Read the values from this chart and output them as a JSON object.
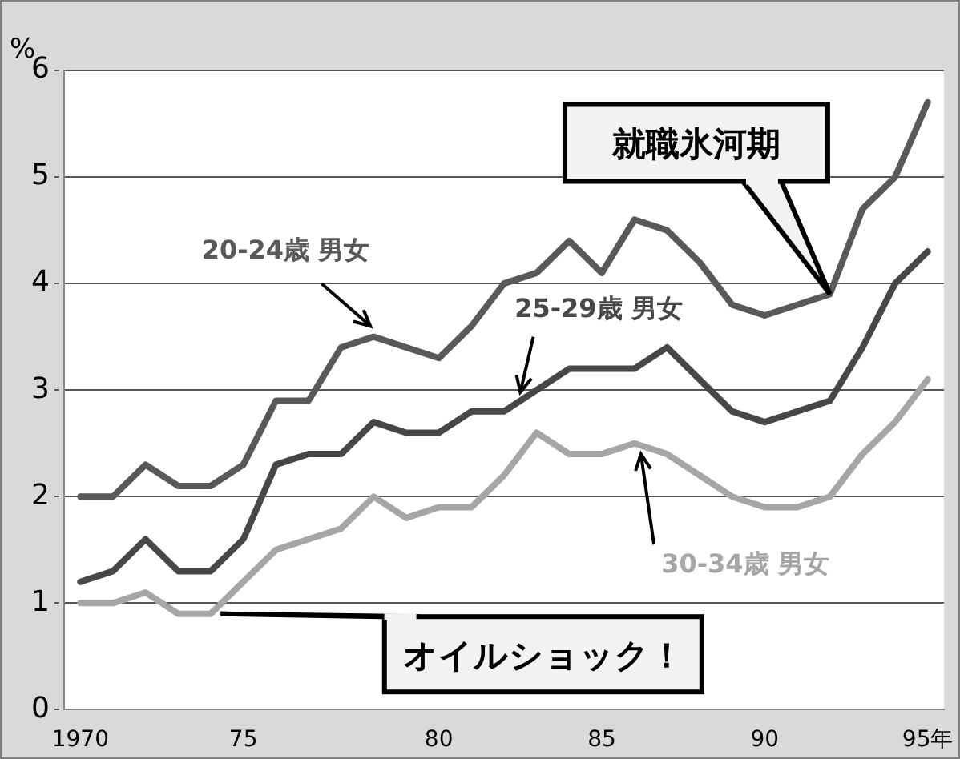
{
  "chart_data": {
    "type": "line",
    "ylabel": "%",
    "categories": [
      "1970",
      null,
      null,
      null,
      null,
      "75",
      null,
      null,
      null,
      null,
      null,
      "80",
      null,
      null,
      null,
      null,
      "85",
      null,
      null,
      null,
      null,
      "90",
      null,
      null,
      null,
      null,
      "95年"
    ],
    "series": [
      {
        "name": "20-24歳 男女",
        "color": "#595959",
        "values": [
          2.0,
          2.0,
          2.3,
          2.1,
          2.1,
          2.3,
          2.9,
          2.9,
          3.4,
          3.5,
          3.4,
          3.3,
          3.6,
          4.0,
          4.1,
          4.4,
          4.1,
          4.6,
          4.5,
          4.2,
          3.8,
          3.7,
          3.8,
          3.9,
          4.7,
          5.0,
          5.7
        ]
      },
      {
        "name": "25-29歳 男女",
        "color": "#474747",
        "values": [
          1.2,
          1.3,
          1.6,
          1.3,
          1.3,
          1.6,
          2.3,
          2.4,
          2.4,
          2.7,
          2.6,
          2.6,
          2.8,
          2.8,
          3.0,
          3.2,
          3.2,
          3.2,
          3.4,
          3.1,
          2.8,
          2.7,
          2.8,
          2.9,
          3.4,
          4.0,
          4.3
        ]
      },
      {
        "name": "30-34歳 男女",
        "color": "#a6a6a6",
        "values": [
          1.0,
          1.0,
          1.1,
          0.9,
          0.9,
          1.2,
          1.5,
          1.6,
          1.7,
          2.0,
          1.8,
          1.9,
          1.9,
          2.2,
          2.6,
          2.4,
          2.4,
          2.5,
          2.4,
          2.2,
          2.0,
          1.9,
          1.9,
          2.0,
          2.4,
          2.7,
          3.1
        ]
      }
    ],
    "annotations": [
      "就職氷河期",
      "オイルショック！"
    ],
    "ylim": [
      0,
      6
    ],
    "yticks": [
      0,
      1,
      2,
      3,
      4,
      5,
      6
    ],
    "grid": "y",
    "legend": false,
    "marker": "none",
    "line_style": "solid"
  }
}
